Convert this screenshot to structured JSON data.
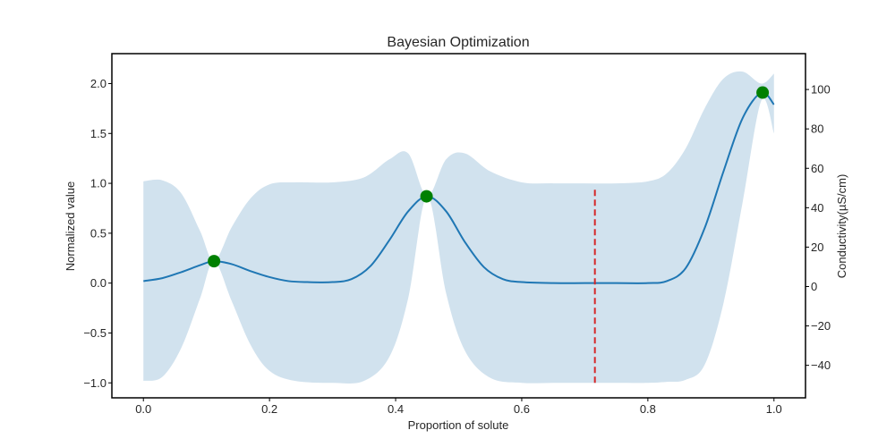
{
  "chart_data": {
    "type": "line",
    "title": "Bayesian Optimization",
    "xlabel": "Proportion of solute",
    "ylabel": "Normalized value",
    "y2label": "Conductivity(µS/cm)",
    "xlim": [
      -0.05,
      1.05
    ],
    "ylim": [
      -1.15,
      2.3
    ],
    "y2lim": [
      -56.5,
      118.2
    ],
    "xticks": [
      0.0,
      0.2,
      0.4,
      0.6,
      0.8,
      1.0
    ],
    "xtick_labels": [
      "0.0",
      "0.2",
      "0.4",
      "0.6",
      "0.8",
      "1.0"
    ],
    "yticks": [
      -1.0,
      -0.5,
      0.0,
      0.5,
      1.0,
      1.5,
      2.0
    ],
    "ytick_labels": [
      "−1.0",
      "−0.5",
      "0.0",
      "0.5",
      "1.0",
      "1.5",
      "2.0"
    ],
    "y2ticks": [
      -40,
      -20,
      0,
      20,
      40,
      60,
      80,
      100
    ],
    "y2tick_labels": [
      "−40",
      "−20",
      "0",
      "20",
      "40",
      "60",
      "80",
      "100"
    ],
    "grid": false,
    "series": [
      {
        "kind": "mean",
        "color": "#1f77b4",
        "x": [
          0.0,
          0.03,
          0.06,
          0.09,
          0.112,
          0.14,
          0.17,
          0.2,
          0.23,
          0.26,
          0.3,
          0.33,
          0.36,
          0.39,
          0.42,
          0.45,
          0.48,
          0.51,
          0.54,
          0.57,
          0.6,
          0.65,
          0.7,
          0.75,
          0.8,
          0.83,
          0.86,
          0.89,
          0.92,
          0.95,
          0.98,
          1.0
        ],
        "y": [
          0.02,
          0.05,
          0.11,
          0.18,
          0.22,
          0.19,
          0.12,
          0.06,
          0.02,
          0.01,
          0.01,
          0.04,
          0.17,
          0.43,
          0.72,
          0.87,
          0.72,
          0.41,
          0.16,
          0.04,
          0.01,
          0.0,
          0.0,
          0.0,
          0.0,
          0.02,
          0.15,
          0.55,
          1.12,
          1.65,
          1.91,
          1.79
        ]
      },
      {
        "kind": "confidence-band",
        "color": "#d1e2ee",
        "x": [
          0.0,
          0.03,
          0.06,
          0.09,
          0.112,
          0.14,
          0.17,
          0.2,
          0.24,
          0.3,
          0.35,
          0.39,
          0.42,
          0.45,
          0.48,
          0.51,
          0.55,
          0.6,
          0.65,
          0.7,
          0.75,
          0.8,
          0.83,
          0.86,
          0.89,
          0.92,
          0.95,
          0.98,
          1.0
        ],
        "upper": [
          1.02,
          1.03,
          0.9,
          0.52,
          0.22,
          0.56,
          0.85,
          0.99,
          1.01,
          1.01,
          1.06,
          1.24,
          1.3,
          0.87,
          1.24,
          1.3,
          1.12,
          1.01,
          1.0,
          1.0,
          1.0,
          1.02,
          1.1,
          1.35,
          1.75,
          2.05,
          2.12,
          2.0,
          2.1
        ],
        "lower": [
          -0.98,
          -0.94,
          -0.65,
          -0.15,
          0.22,
          -0.18,
          -0.62,
          -0.88,
          -0.98,
          -1.0,
          -0.98,
          -0.74,
          -0.15,
          0.87,
          -0.1,
          -0.68,
          -0.95,
          -1.0,
          -1.0,
          -1.0,
          -1.0,
          -1.0,
          -0.99,
          -0.97,
          -0.82,
          -0.2,
          0.8,
          1.83,
          1.5
        ]
      }
    ],
    "observations": {
      "color": "#008000",
      "x": [
        0.112,
        0.449,
        0.982
      ],
      "y": [
        0.22,
        0.87,
        1.91
      ]
    },
    "next_point": {
      "color": "#d62728",
      "x": 0.716,
      "y_range": [
        -1.0,
        0.97
      ]
    }
  }
}
